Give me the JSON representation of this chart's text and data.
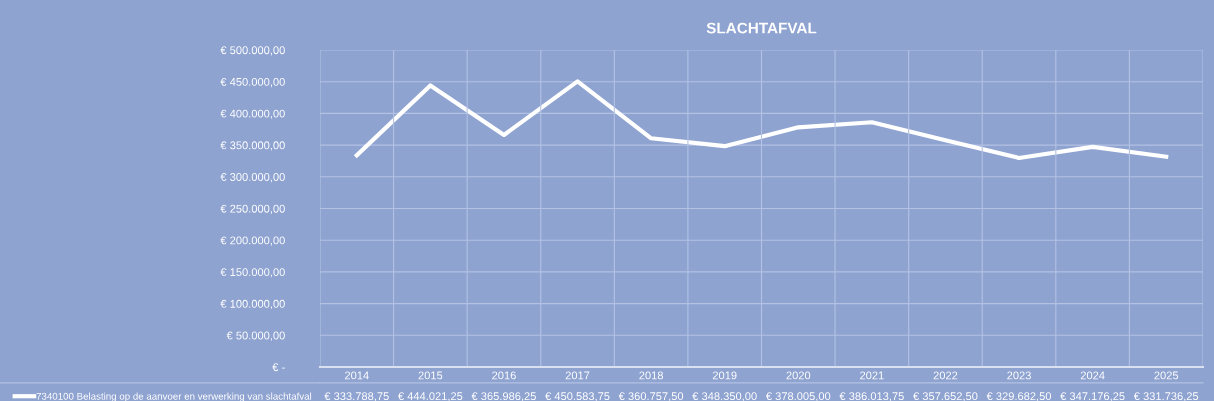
{
  "chart_data": {
    "type": "line",
    "title": "SLACHTAFVAL",
    "categories": [
      "2014",
      "2015",
      "2016",
      "2017",
      "2018",
      "2019",
      "2020",
      "2021",
      "2022",
      "2023",
      "2024",
      "2025"
    ],
    "series": [
      {
        "name": "7340100 Belasting op de aanvoer en verwerking van slachtafval",
        "color": "#ffffff",
        "values": [
          333788.75,
          444021.25,
          365986.25,
          450583.75,
          360757.5,
          348350.0,
          378005.0,
          386013.75,
          357652.5,
          329682.5,
          347176.25,
          331736.25
        ],
        "value_labels": [
          "€ 333.788,75",
          "€ 444.021,25",
          "€ 365.986,25",
          "€ 450.583,75",
          "€ 360.757,50",
          "€ 348.350,00",
          "€ 378.005,00",
          "€ 386.013,75",
          "€ 357.652,50",
          "€ 329.682,50",
          "€ 347.176,25",
          "€ 331.736,25"
        ]
      }
    ],
    "ylim": [
      0,
      500000
    ],
    "yticks": [
      {
        "value": 0,
        "label": "€ -"
      },
      {
        "value": 50000,
        "label": "€ 50.000,00"
      },
      {
        "value": 100000,
        "label": "€ 100.000,00"
      },
      {
        "value": 150000,
        "label": "€ 150.000,00"
      },
      {
        "value": 200000,
        "label": "€ 200.000,00"
      },
      {
        "value": 250000,
        "label": "€ 250.000,00"
      },
      {
        "value": 300000,
        "label": "€ 300.000,00"
      },
      {
        "value": 350000,
        "label": "€ 350.000,00"
      },
      {
        "value": 400000,
        "label": "€ 400.000,00"
      },
      {
        "value": 450000,
        "label": "€ 450.000,00"
      },
      {
        "value": 500000,
        "label": "€ 500.000,00"
      }
    ],
    "grid": true,
    "legend": "bottom",
    "marker": "none",
    "line_style": "solid"
  }
}
